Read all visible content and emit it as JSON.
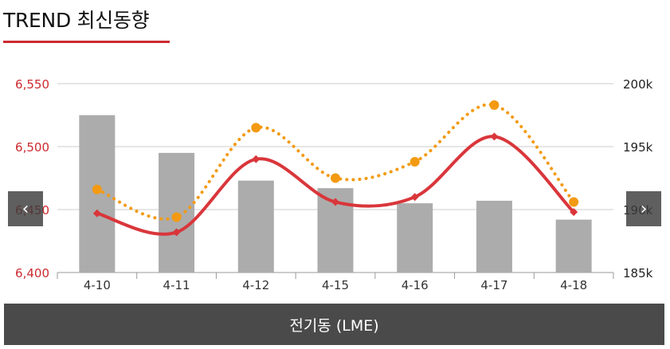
{
  "header": {
    "title": "TREND 최신동향"
  },
  "nav": {
    "prev_label": "‹",
    "next_label": "›",
    "prev_icon": "chevron-left-icon",
    "next_icon": "chevron-right-icon"
  },
  "footer": {
    "label": "전기동 (LME)"
  },
  "colors": {
    "accent": "#cc2a30",
    "bar": "#acacac",
    "line_primary": "#d9363b",
    "line_secondary": "#f39a12",
    "footer_bg": "#4a4a4a",
    "grid": "#cccccc"
  },
  "chart_data": {
    "type": "bar+line",
    "categories": [
      "4-10",
      "4-11",
      "4-12",
      "4-15",
      "4-16",
      "4-17",
      "4-18"
    ],
    "left_axis": {
      "ylim": [
        6400,
        6550
      ],
      "ticks": [
        "6,400",
        "6,450",
        "6,500",
        "6,550"
      ],
      "color": "#cc2a30"
    },
    "right_axis": {
      "ylim": [
        185,
        200
      ],
      "ticks": [
        "185k",
        "190k",
        "195k",
        "200k"
      ],
      "unit": "k"
    },
    "bars": {
      "axis": "right",
      "values": [
        197.5,
        194.5,
        192.3,
        191.7,
        190.5,
        190.7,
        189.2
      ]
    },
    "series": [
      {
        "axis": "left",
        "style": "solid",
        "marker": "diamond",
        "color": "#d9363b",
        "values": [
          6447,
          6432,
          6490,
          6456,
          6460,
          6508,
          6448
        ]
      },
      {
        "axis": "left",
        "style": "dotted",
        "marker": "circle",
        "color": "#f39a12",
        "values": [
          6466,
          6444,
          6515,
          6475,
          6488,
          6533,
          6456
        ]
      }
    ],
    "grid": true,
    "legend": "none"
  }
}
